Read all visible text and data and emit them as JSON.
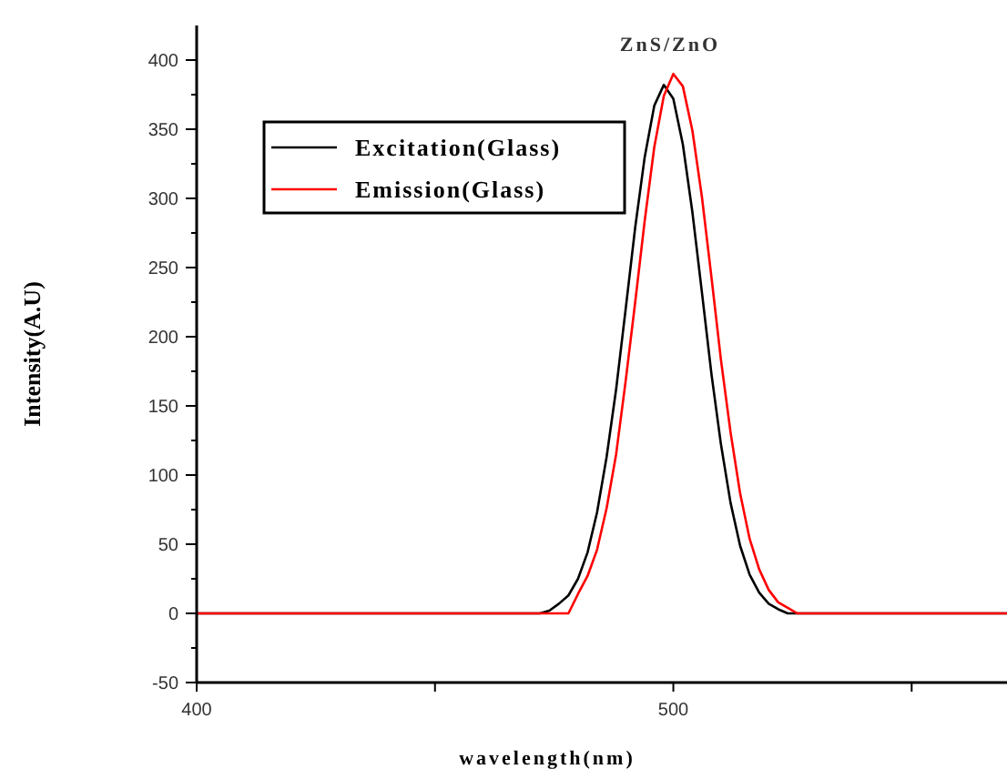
{
  "chart_data": {
    "type": "line",
    "title": "ZnS/ZnO",
    "xlabel": "wavelength(nm)",
    "ylabel": "Intensity(A.U)",
    "xlim": [
      400,
      570
    ],
    "xticks": [
      400,
      {
        "value": 450,
        "label": null
      },
      500,
      {
        "value": 550,
        "label": null
      }
    ],
    "ylim": [
      -50,
      425
    ],
    "yticks": [
      -50,
      {
        "value": -25,
        "label": null
      },
      0,
      {
        "value": 25,
        "label": null
      },
      50,
      {
        "value": 75,
        "label": null
      },
      100,
      {
        "value": 125,
        "label": null
      },
      150,
      {
        "value": 175,
        "label": null
      },
      200,
      {
        "value": 225,
        "label": null
      },
      250,
      {
        "value": 275,
        "label": null
      },
      300,
      {
        "value": 325,
        "label": null
      },
      350,
      {
        "value": 375,
        "label": null
      },
      400
    ],
    "grid": false,
    "legend": "top left",
    "marker": "none",
    "line_style": "solid",
    "series": [
      {
        "name": "Excitation(Glass)",
        "color": "#000000",
        "x": [
          400,
          472,
          474,
          476,
          478,
          480,
          482,
          484,
          486,
          488,
          490,
          492,
          494,
          496,
          498,
          500,
          502,
          504,
          506,
          508,
          510,
          512,
          514,
          516,
          518,
          520,
          522,
          524,
          570
        ],
        "values": [
          0,
          0,
          2,
          7,
          13,
          25,
          44,
          73,
          113,
          162,
          220,
          279,
          330,
          367,
          382,
          372,
          339,
          290,
          232,
          173,
          122,
          80,
          49,
          28,
          15,
          7,
          3,
          0,
          0
        ]
      },
      {
        "name": "Emission(Glass)",
        "color": "#ff0000",
        "x": [
          400,
          478,
          480,
          482,
          484,
          486,
          488,
          490,
          492,
          494,
          496,
          498,
          500,
          502,
          504,
          506,
          508,
          510,
          512,
          514,
          516,
          518,
          520,
          522,
          524,
          526,
          570
        ],
        "values": [
          0,
          0,
          14,
          27,
          46,
          76,
          115,
          168,
          225,
          284,
          337,
          374,
          390,
          381,
          349,
          301,
          243,
          183,
          131,
          87,
          54,
          32,
          17,
          8,
          4,
          0,
          0
        ]
      }
    ]
  }
}
